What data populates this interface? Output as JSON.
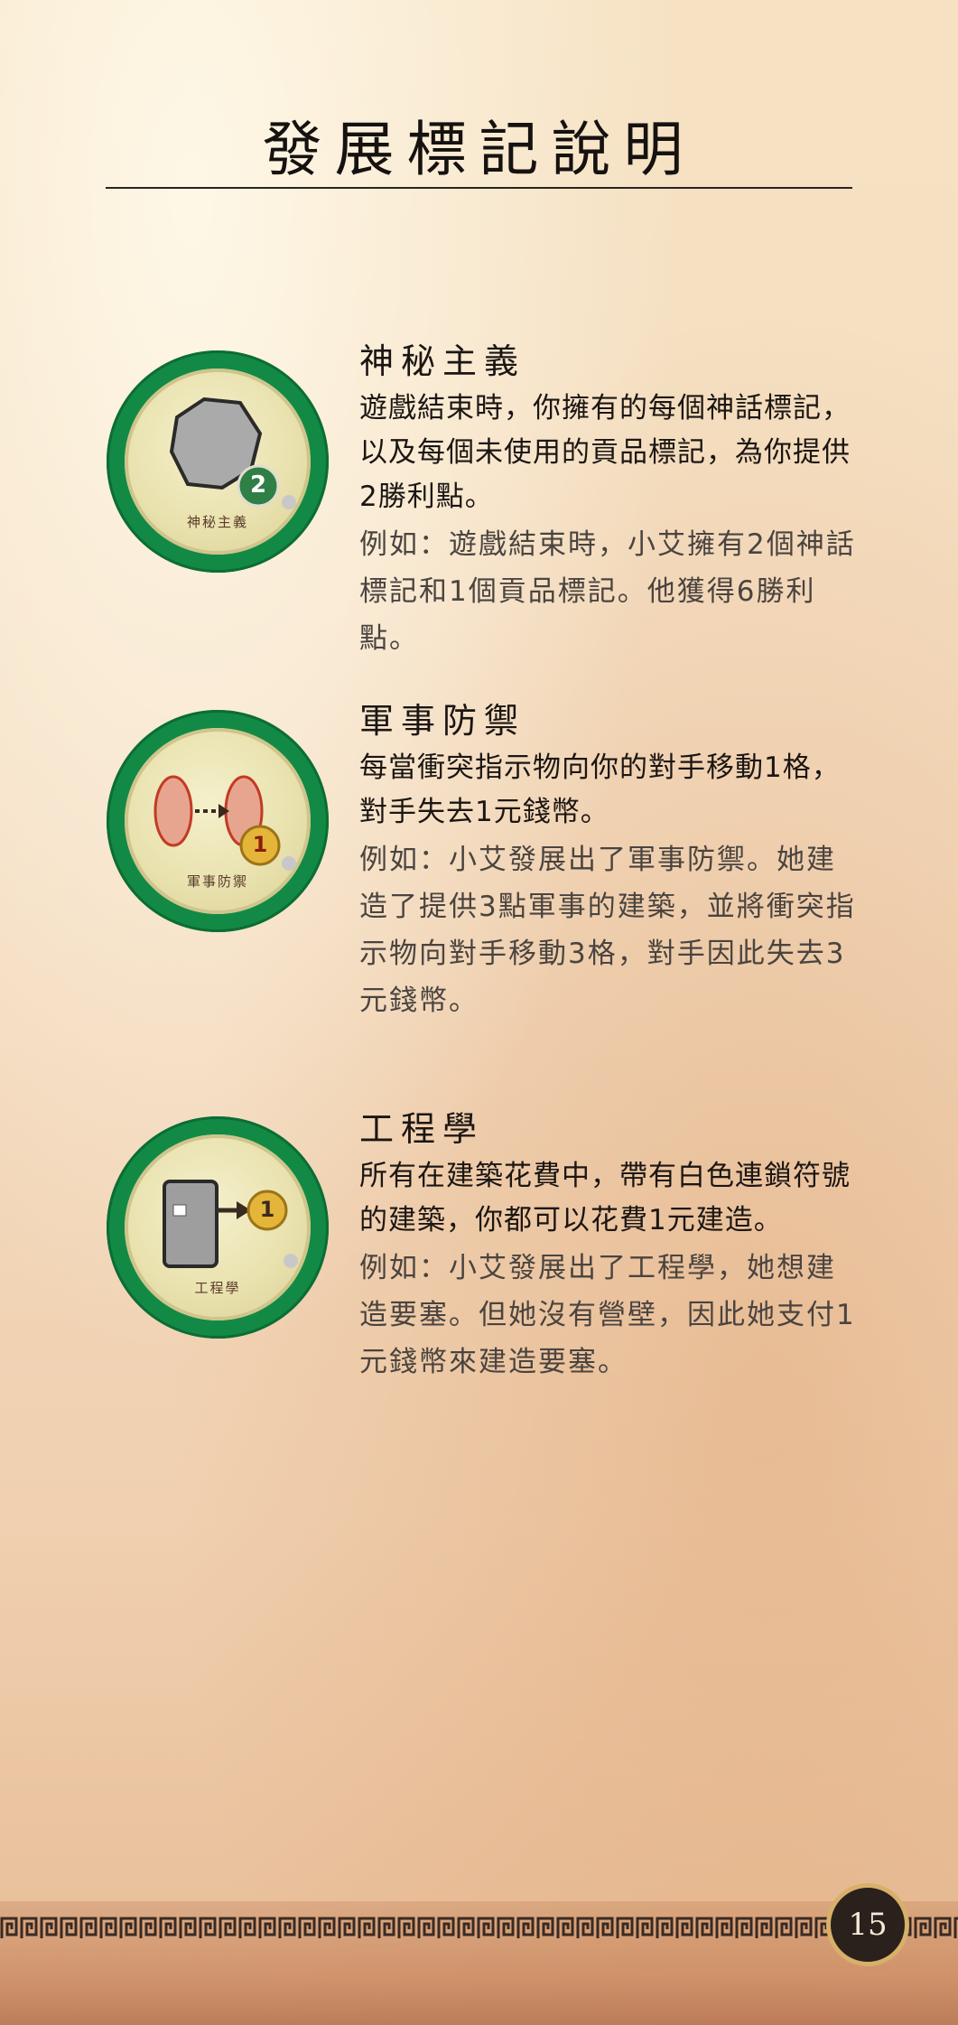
{
  "page": {
    "title": "發展標記說明",
    "page_number": "15"
  },
  "sections": [
    {
      "title": "神秘主義",
      "body": "遊戲結束時，你擁有的每個神話標記，以及每個未使用的貢品標記，為你提供2勝利點。",
      "example": "例如：遊戲結束時，小艾擁有2個神話標記和1個貢品標記。他獲得6勝利點。",
      "token_label": "神秘主義",
      "token_icon": "heptagon-myth-icon",
      "token_value": "2"
    },
    {
      "title": "軍事防禦",
      "body": "每當衝突指示物向你的對手移動1格，對手失去1元錢幣。",
      "example": "例如：小艾發展出了軍事防禦。她建造了提供3點軍事的建築，並將衝突指示物向對手移動3格，對手因此失去3元錢幣。",
      "token_label": "軍事防禦",
      "token_icon": "conflict-move-icon",
      "token_value": "1"
    },
    {
      "title": "工程學",
      "body": "所有在建築花費中，帶有白色連鎖符號的建築，你都可以花費1元建造。",
      "example": "例如：小艾發展出了工程學，她想建造要塞。但她沒有營壁，因此她支付1元錢幣來建造要塞。",
      "token_label": "工程學",
      "token_icon": "card-chain-icon",
      "token_value": "1"
    }
  ],
  "colors": {
    "token_ring": "#128a45",
    "token_center": "#efe8bb",
    "page_number_bg": "#2a201c",
    "accent_gold": "#d7b06a"
  }
}
